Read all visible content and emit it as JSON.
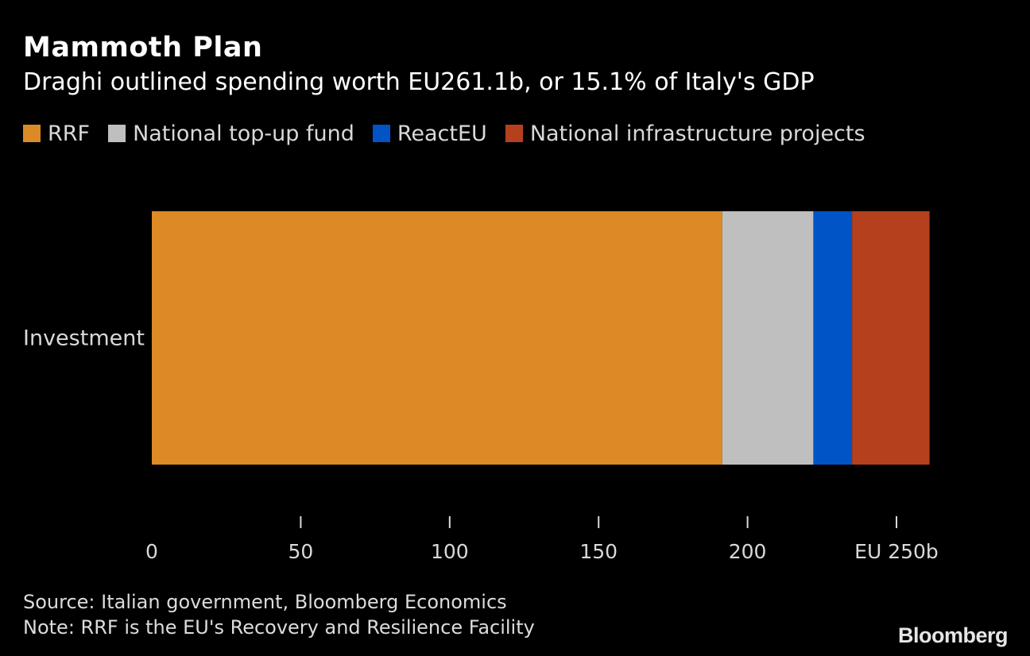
{
  "title": "Mammoth Plan",
  "subtitle": "Draghi outlined spending worth EU261.1b, or 15.1% of Italy's GDP",
  "footer": {
    "source": "Source: Italian government, Bloomberg Economics",
    "note": "Note: RRF is the EU's Recovery and Resilience Facility"
  },
  "brand": "Bloomberg",
  "colors": {
    "background": "#000000",
    "RRF": "#DB8A25",
    "National top-up fund": "#BFBFBF",
    "ReactEU": "#0054C6",
    "National infrastructure projects": "#B5401E"
  },
  "chart_data": {
    "type": "bar",
    "orientation": "horizontal",
    "stacked": true,
    "categories": [
      "Investment"
    ],
    "series": [
      {
        "name": "RRF",
        "values": [
          191.5
        ],
        "color": "#DB8A25"
      },
      {
        "name": "National top-up fund",
        "values": [
          30.6
        ],
        "color": "#BFBFBF"
      },
      {
        "name": "ReactEU",
        "values": [
          13.0
        ],
        "color": "#0054C6"
      },
      {
        "name": "National infrastructure projects",
        "values": [
          26.0
        ],
        "color": "#B5401E"
      }
    ],
    "xlim": [
      0,
      260
    ],
    "xticks": [
      0,
      50,
      100,
      150,
      200,
      250
    ],
    "xtick_labels": [
      "0",
      "50",
      "100",
      "150",
      "200",
      "EU 250b"
    ],
    "legend_position": "top-left",
    "grid": false
  }
}
